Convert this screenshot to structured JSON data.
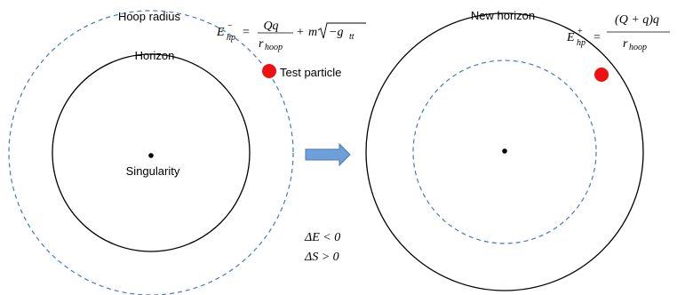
{
  "left_panel": {
    "hoop_label": "Hoop radius",
    "horizon_label": "Horizon",
    "singularity_label": "Singularity",
    "particle_label": "Test particle",
    "equation": {
      "lhs_symbol": "E",
      "lhs_super": "−",
      "lhs_sub": "hp",
      "numerator": "Qq",
      "denominator": "r",
      "denominator_sub": "hoop",
      "tail_coeff": "m",
      "tail_radicand": "−g",
      "tail_radicand_sub": "tt"
    }
  },
  "right_panel": {
    "horizon_label": "New horizon",
    "equation": {
      "lhs_symbol": "E",
      "lhs_super": "+",
      "lhs_sub": "hp",
      "numerator": "(Q + q)q",
      "denominator": "r",
      "denominator_sub": "hoop"
    }
  },
  "changes": {
    "energy": "ΔE < 0",
    "entropy": "ΔS > 0"
  },
  "colors": {
    "circle_stroke": "#000000",
    "hoop_stroke": "#4a78b8",
    "particle_fill": "#ee1111",
    "arrow_fill": "#6f9fd8",
    "arrow_stroke": "#4a78b8"
  }
}
